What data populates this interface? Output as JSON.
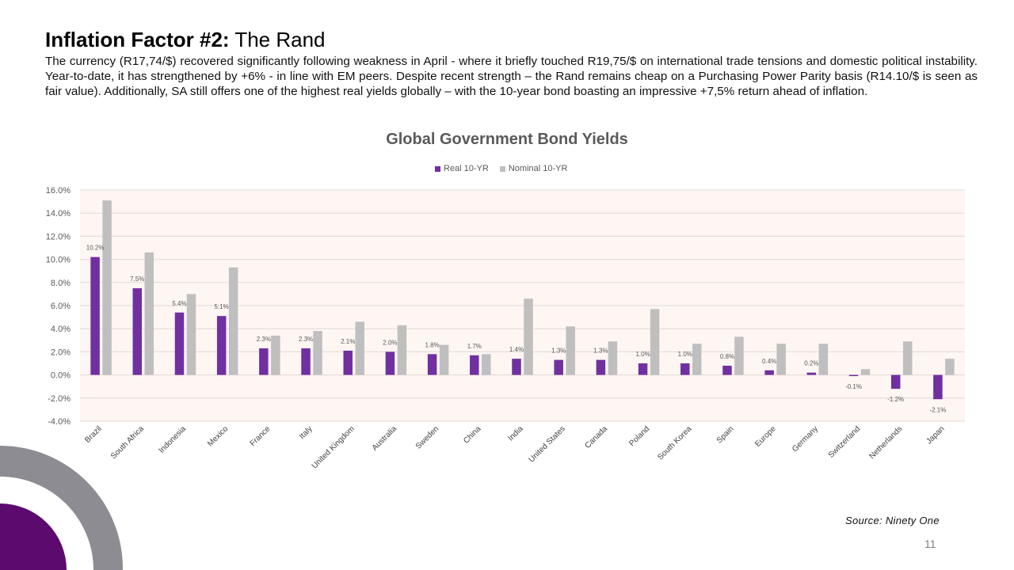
{
  "slide": {
    "title_bold": "Inflation Factor #2:",
    "title_rest": " The Rand",
    "body": "The currency (R17,74/$) recovered significantly following weakness in April - where it briefly touched R19,75/$ on international trade tensions and domestic political instability. Year-to-date, it has strengthened by +6%  - in line with EM peers. Despite recent strength – the Rand remains cheap on a Purchasing Power Parity basis (R14.10/$ is seen as fair value). Additionally, SA still offers one of the highest real yields globally – with the 10-year bond boasting an impressive +7,5% return ahead of inflation.",
    "source": "Source: Ninety One",
    "page_number": "11"
  },
  "colors": {
    "real": "#7030a0",
    "nominal": "#bfbfbf",
    "plot_bg": "#fdf6f3",
    "grid": "#e3d8d4",
    "deco_ring": "#8e8c93",
    "deco_disc": "#5c0a6e"
  },
  "chart_data": {
    "type": "bar",
    "title": "Global Government Bond Yields",
    "legend_position": "top",
    "grid": true,
    "ylim": [
      -4.0,
      16.0
    ],
    "yticks": [
      "16.0%",
      "14.0%",
      "12.0%",
      "10.0%",
      "8.0%",
      "6.0%",
      "4.0%",
      "2.0%",
      "0.0%",
      "-2.0%",
      "-4.0%"
    ],
    "categories": [
      "Brazil",
      "South Africa",
      "Indonesia",
      "Mexico",
      "France",
      "Italy",
      "United Kingdom",
      "Australia",
      "Sweden",
      "China",
      "India",
      "United States",
      "Canada",
      "Poland",
      "South Korea",
      "Spain",
      "Europe",
      "Germany",
      "Switzerland",
      "Netherlands",
      "Japan"
    ],
    "series": [
      {
        "name": "Real 10-YR",
        "values": [
          10.2,
          7.5,
          5.4,
          5.1,
          2.3,
          2.3,
          2.1,
          2.0,
          1.8,
          1.7,
          1.4,
          1.3,
          1.3,
          1.0,
          1.0,
          0.8,
          0.4,
          0.2,
          -0.1,
          -1.2,
          -2.1
        ],
        "labels": [
          "10.2%",
          "7.5%",
          "5.4%",
          "5.1%",
          "2.3%",
          "2.3%",
          "2.1%",
          "2.0%",
          "1.8%",
          "1.7%",
          "1.4%",
          "1.3%",
          "1.3%",
          "1.0%",
          "1.0%",
          "0.8%",
          "0.4%",
          "0.2%",
          "-0.1%",
          "-1.2%",
          "-2.1%"
        ]
      },
      {
        "name": "Nominal 10-YR",
        "values": [
          15.1,
          10.6,
          7.0,
          9.3,
          3.4,
          3.8,
          4.6,
          4.3,
          2.6,
          1.8,
          6.6,
          4.2,
          2.9,
          5.7,
          2.7,
          3.3,
          2.7,
          2.7,
          0.5,
          2.9,
          1.4
        ]
      }
    ]
  }
}
